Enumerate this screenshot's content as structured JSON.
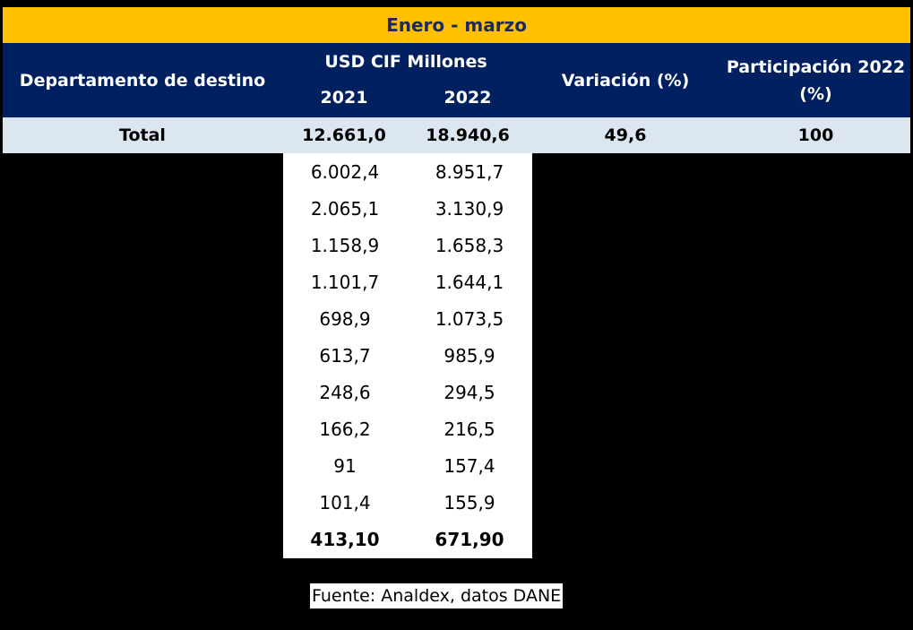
{
  "title": "Enero - marzo",
  "header": {
    "departamento": "Departamento de destino",
    "usd_cif": "USD CIF Millones",
    "year_2021": "2021",
    "year_2022": "2022",
    "variacion": "Variación (%)",
    "participacion": "Participación 2022 (%)"
  },
  "total_row": {
    "label": "Total",
    "v2021": "12.661,0",
    "v2022": "18.940,6",
    "variacion": "49,6",
    "participacion": "100"
  },
  "rows": [
    {
      "v2021": "6.002,4",
      "v2022": "8.951,7"
    },
    {
      "v2021": "2.065,1",
      "v2022": "3.130,9"
    },
    {
      "v2021": "1.158,9",
      "v2022": "1.658,3"
    },
    {
      "v2021": "1.101,7",
      "v2022": "1.644,1"
    },
    {
      "v2021": "698,9",
      "v2022": "1.073,5"
    },
    {
      "v2021": "613,7",
      "v2022": "985,9"
    },
    {
      "v2021": "248,6",
      "v2022": "294,5"
    },
    {
      "v2021": "166,2",
      "v2022": "216,5"
    },
    {
      "v2021": "91",
      "v2022": "157,4"
    },
    {
      "v2021": "101,4",
      "v2022": "155,9"
    },
    {
      "v2021": "413,10",
      "v2022": "671,90"
    }
  ],
  "source": "Fuente: Analdex, datos DANE",
  "colors": {
    "title_bg": "#FFC000",
    "header_bg": "#002060",
    "total_bg": "#DCE6F1"
  }
}
